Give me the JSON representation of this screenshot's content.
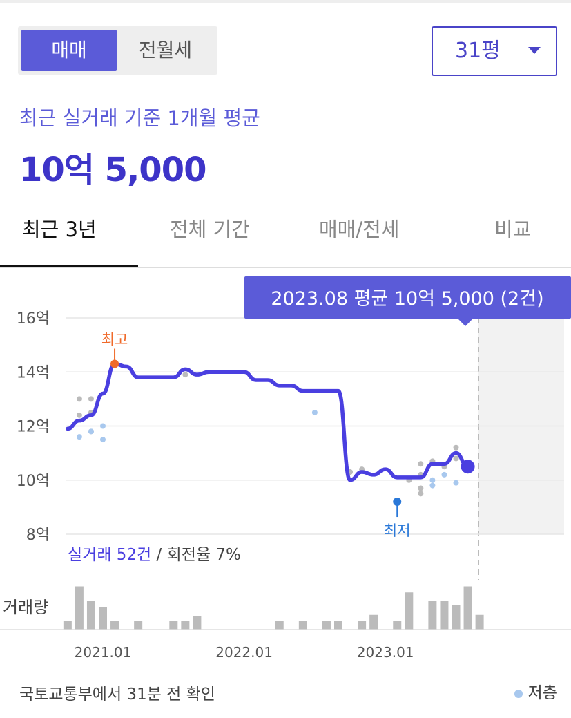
{
  "segmented": {
    "sale": "매매",
    "rent": "전월세",
    "selected": "매매"
  },
  "size_select": {
    "value": "31평"
  },
  "summary": {
    "label": "최근 실거래 기준 1개월 평균",
    "price": "10억 5,000"
  },
  "tabs": [
    {
      "label": "최근 3년",
      "active": true
    },
    {
      "label": "전체 기간",
      "active": false
    },
    {
      "label": "매매/전세",
      "active": false
    },
    {
      "label": "비교",
      "active": false
    }
  ],
  "tooltip": "2023.08 평균 10억 5,000 (2건)",
  "chart_data": {
    "type": "line",
    "y_unit": "억",
    "yticks": [
      "16억",
      "14억",
      "12억",
      "10억",
      "8억"
    ],
    "ylim": [
      8,
      16
    ],
    "xticks": [
      "2021.01",
      "2022.01",
      "2023.01"
    ],
    "avg_line": [
      [
        "2020.10",
        11.9
      ],
      [
        "2020.11",
        12.2
      ],
      [
        "2020.12",
        12.4
      ],
      [
        "2021.01",
        13.2
      ],
      [
        "2021.02",
        14.3
      ],
      [
        "2021.03",
        14.2
      ],
      [
        "2021.04",
        13.8
      ],
      [
        "2021.05",
        13.8
      ],
      [
        "2021.06",
        13.8
      ],
      [
        "2021.07",
        13.8
      ],
      [
        "2021.08",
        14.1
      ],
      [
        "2021.09",
        13.9
      ],
      [
        "2021.10",
        14.0
      ],
      [
        "2021.11",
        14.0
      ],
      [
        "2021.12",
        14.0
      ],
      [
        "2022.01",
        14.0
      ],
      [
        "2022.02",
        13.7
      ],
      [
        "2022.03",
        13.7
      ],
      [
        "2022.04",
        13.5
      ],
      [
        "2022.05",
        13.5
      ],
      [
        "2022.06",
        13.3
      ],
      [
        "2022.07",
        13.3
      ],
      [
        "2022.08",
        13.3
      ],
      [
        "2022.09",
        13.3
      ],
      [
        "2022.10",
        10.0
      ],
      [
        "2022.11",
        10.3
      ],
      [
        "2022.12",
        10.2
      ],
      [
        "2023.01",
        10.4
      ],
      [
        "2023.02",
        10.1
      ],
      [
        "2023.03",
        10.1
      ],
      [
        "2023.04",
        10.1
      ],
      [
        "2023.05",
        10.6
      ],
      [
        "2023.06",
        10.6
      ],
      [
        "2023.07",
        11.0
      ],
      [
        "2023.08",
        10.5
      ]
    ],
    "trades_gray": [
      [
        "2020.11",
        13.0
      ],
      [
        "2020.11",
        12.4
      ],
      [
        "2020.12",
        13.0
      ],
      [
        "2020.12",
        12.5
      ],
      [
        "2020.12",
        11.8
      ],
      [
        "2021.08",
        13.9
      ],
      [
        "2022.10",
        10.3
      ],
      [
        "2022.11",
        10.4
      ],
      [
        "2023.04",
        10.2
      ],
      [
        "2023.04",
        10.6
      ],
      [
        "2023.05",
        10.7
      ],
      [
        "2023.06",
        10.5
      ],
      [
        "2023.07",
        11.2
      ],
      [
        "2023.07",
        10.8
      ],
      [
        "2023.08",
        10.6
      ],
      [
        "2023.04",
        9.5
      ],
      [
        "2023.04",
        9.7
      ],
      [
        "2023.03",
        10.0
      ]
    ],
    "trades_low_floor": [
      [
        "2020.11",
        11.6
      ],
      [
        "2020.12",
        11.8
      ],
      [
        "2021.01",
        12.0
      ],
      [
        "2021.01",
        11.5
      ],
      [
        "2022.07",
        12.5
      ],
      [
        "2023.05",
        9.8
      ],
      [
        "2023.05",
        10.0
      ],
      [
        "2023.06",
        10.2
      ],
      [
        "2023.07",
        9.9
      ]
    ],
    "highest": {
      "label": "최고",
      "date": "2021.02",
      "value": 14.3
    },
    "lowest": {
      "label": "최저",
      "date": "2023.02",
      "value": 9.2
    },
    "trade_summary": {
      "count_text": "실거래 52건",
      "turnover_text": " / 회전율 7%"
    },
    "volume_label": "거래량",
    "volume": [
      [
        "2020.10",
        1
      ],
      [
        "2020.11",
        5
      ],
      [
        "2020.12",
        3.3
      ],
      [
        "2021.01",
        2.6
      ],
      [
        "2021.02",
        1
      ],
      [
        "2021.04",
        1
      ],
      [
        "2021.07",
        1
      ],
      [
        "2021.08",
        1
      ],
      [
        "2021.09",
        1.6
      ],
      [
        "2022.04",
        1
      ],
      [
        "2022.06",
        1
      ],
      [
        "2022.08",
        1
      ],
      [
        "2022.09",
        1
      ],
      [
        "2022.11",
        1
      ],
      [
        "2022.12",
        1.7
      ],
      [
        "2023.02",
        1
      ],
      [
        "2023.03",
        4.3
      ],
      [
        "2023.05",
        3.3
      ],
      [
        "2023.06",
        3.3
      ],
      [
        "2023.07",
        2.8
      ],
      [
        "2023.08",
        5
      ],
      [
        "2023.09",
        1.7
      ]
    ],
    "colors": {
      "line": "#4a3fe0",
      "high": "#f06a2a",
      "low": "#2a78d8",
      "gray_dot": "#bbbbbb",
      "blue_dot": "#a8c8ee",
      "bar": "#bbbbbb",
      "tooltip_bg": "#5b5bd8"
    }
  },
  "footer": {
    "source": "국토교통부에서 31분 전 확인",
    "legend": "저층"
  }
}
